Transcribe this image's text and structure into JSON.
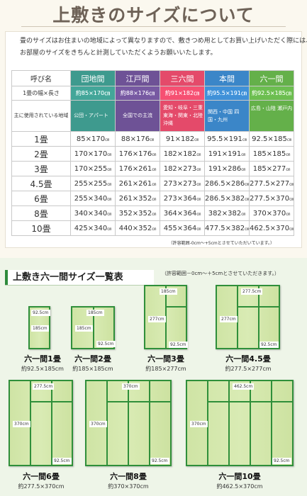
{
  "title": "上敷きのサイズについて",
  "intro": [
    "畳のサイズはお住まいの地域によって異なりますので、敷きつめ用としてお買い上げいただく際には、",
    "お部屋のサイズをきちんと計測していただくようお願いいたします。"
  ],
  "table": {
    "label_header": "呼び名",
    "label_width": "1畳の幅×長さ",
    "label_area": "主に使用されている地域",
    "columns": [
      {
        "name": "団地間",
        "color": "#3e9a8e",
        "width": "約85×170㎝",
        "area": "公団・アパート"
      },
      {
        "name": "江戸間",
        "color": "#6e5296",
        "width": "約88×176㎝",
        "area": "全国での主流"
      },
      {
        "name": "三六間",
        "color": "#e44a6a",
        "width": "約91×182㎝",
        "area": "愛知・岐阜・三重 東海・関東・北陸 沖縄"
      },
      {
        "name": "本間",
        "color": "#3b86c8",
        "width": "約95.5×191㎝",
        "area": "関西・中国 四国・九州"
      },
      {
        "name": "六一間",
        "color": "#64b04a",
        "width": "約92.5×185㎝",
        "area": "広島・山陰 瀬戸内"
      }
    ],
    "rows": [
      {
        "label": "1畳",
        "values": [
          "85×170",
          "88×176",
          "91×182",
          "95.5×191",
          "92.5×185"
        ]
      },
      {
        "label": "2畳",
        "values": [
          "170×170",
          "176×176",
          "182×182",
          "191×191",
          "185×185"
        ]
      },
      {
        "label": "3畳",
        "values": [
          "170×255",
          "176×261",
          "182×273",
          "191×286",
          "185×277"
        ]
      },
      {
        "label": "4.5畳",
        "values": [
          "255×255",
          "261×261",
          "273×273",
          "286.5×286",
          "277.5×277"
        ]
      },
      {
        "label": "6畳",
        "values": [
          "255×340",
          "261×352",
          "273×364",
          "286.5×382",
          "277.5×370"
        ]
      },
      {
        "label": "8畳",
        "values": [
          "340×340",
          "352×352",
          "364×364",
          "382×382",
          "370×370"
        ]
      },
      {
        "label": "10畳",
        "values": [
          "425×340",
          "440×352",
          "455×364",
          "477.5×382",
          "462.5×370"
        ]
      }
    ],
    "unit": "㎝",
    "tolerance": "（許容範囲-0cm〜+5cmとさせていただいています。）"
  },
  "section": {
    "title": "上敷き六一間サイズ一覧表",
    "tolerance": "（許容範囲－0cm〜＋5cmとさせていただきます。）",
    "mats": [
      {
        "name": "六一間1畳",
        "size": "約92.5×185cm",
        "dims": [
          "92.5cm",
          "185cm"
        ]
      },
      {
        "name": "六一間2畳",
        "size": "約185×185cm",
        "dims": [
          "185cm",
          "185cm",
          "92.5cm"
        ]
      },
      {
        "name": "六一間3畳",
        "size": "約185×277cm",
        "dims": [
          "185cm",
          "277cm",
          "92.5cm"
        ]
      },
      {
        "name": "六一間4.5畳",
        "size": "約277.5×277cm",
        "dims": [
          "277.5cm",
          "277cm",
          "92.5cm"
        ]
      },
      {
        "name": "六一間6畳",
        "size": "約277.5×370cm",
        "dims": [
          "277.5cm",
          "370cm",
          "92.5cm"
        ]
      },
      {
        "name": "六一間8畳",
        "size": "約370×370cm",
        "dims": [
          "370cm",
          "370cm",
          "92.5cm"
        ]
      },
      {
        "name": "六一間10畳",
        "size": "約462.5×370cm",
        "dims": [
          "462.5cm",
          "370cm",
          "92.5cm"
        ]
      }
    ]
  },
  "colors": {
    "mat_border": "#2f8f3a",
    "mat_fill": "#d6e9b0",
    "section_bg": "#eef5e8",
    "title_text": "#6e6257"
  }
}
